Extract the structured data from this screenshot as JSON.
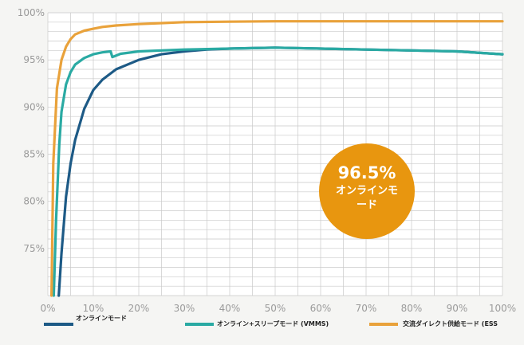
{
  "chart_data": {
    "type": "line",
    "xlabel": "",
    "ylabel": "",
    "x_ticks": [
      "0%",
      "10%",
      "20%",
      "30%",
      "40%",
      "50%",
      "60%",
      "70%",
      "80%",
      "90%",
      "100%"
    ],
    "y_ticks": [
      "75%",
      "80%",
      "85%",
      "90%",
      "95%",
      "100%"
    ],
    "xlim": [
      0,
      100
    ],
    "ylim": [
      70,
      100
    ],
    "grid": true,
    "legend_position": "bottom",
    "series": [
      {
        "name": "オンラインモード",
        "color": "#1d5a86",
        "x": [
          2.4,
          3,
          4,
          5,
          6,
          8,
          10,
          12,
          15,
          20,
          25,
          30,
          35,
          40,
          45,
          50,
          60,
          70,
          80,
          90,
          100
        ],
        "y": [
          70,
          74.5,
          80.5,
          84,
          86.5,
          89.8,
          91.8,
          92.9,
          94,
          95,
          95.6,
          95.9,
          96.1,
          96.2,
          96.25,
          96.3,
          96.2,
          96.1,
          96,
          95.9,
          95.6
        ]
      },
      {
        "name": "オンライン+スリープモード (VMMS)",
        "color": "#2aaaa3",
        "x": [
          1.3,
          1.8,
          2.5,
          3,
          4,
          5,
          6,
          8,
          10,
          12,
          13.8,
          14.2,
          16,
          20,
          25,
          30,
          40,
          50,
          60,
          70,
          80,
          90,
          100
        ],
        "y": [
          70,
          78,
          86,
          89.5,
          92.4,
          93.7,
          94.5,
          95.2,
          95.6,
          95.8,
          95.9,
          95.3,
          95.65,
          95.9,
          96,
          96.1,
          96.2,
          96.3,
          96.2,
          96.1,
          96,
          95.9,
          95.6
        ]
      },
      {
        "name": "交流ダイレクト供給モード (ESS",
        "color": "#e9a23b",
        "x": [
          0.8,
          1.2,
          2,
          3,
          4,
          5,
          6,
          8,
          10,
          12,
          15,
          20,
          25,
          30,
          40,
          50,
          60,
          70,
          80,
          90,
          100
        ],
        "y": [
          70,
          84,
          92,
          95,
          96.4,
          97.2,
          97.7,
          98.1,
          98.3,
          98.5,
          98.65,
          98.8,
          98.9,
          99,
          99.05,
          99.1,
          99.1,
          99.1,
          99.1,
          99.1,
          99.1
        ]
      }
    ],
    "annotation": {
      "value": "96.5%",
      "label_line1": "オンラインモ",
      "label_line2": "ード",
      "color": "#e8960f"
    }
  }
}
